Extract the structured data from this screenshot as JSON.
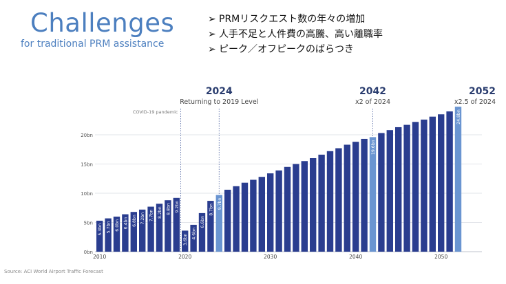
{
  "slide": {
    "title": "Challenges",
    "subtitle": "for traditional PRM assistance",
    "bullets": [
      {
        "marker": "➢",
        "text": "PRMリスクエスト数の年々の増加"
      },
      {
        "marker": "➢",
        "text": "人手不足と人件費の高騰、高い離職率"
      },
      {
        "marker": "➢",
        "text": "ピーク／オフピークのばらつき"
      }
    ],
    "source": "Source: ACI World Airport Traffic Forecast"
  },
  "colors": {
    "title": "#4c7fbf",
    "bar": "#2a3d8f",
    "highlight_bar": "#6a95d1",
    "milestone_text": "#2a3d6f"
  },
  "chart_data": {
    "type": "bar",
    "ylim": [
      0,
      25
    ],
    "yticks": [
      0,
      5,
      10,
      15,
      20
    ],
    "ytick_labels": [
      "0bn",
      "5bn",
      "10bn",
      "15bn",
      "20bn"
    ],
    "xticks": [
      2010,
      2020,
      2030,
      2040,
      2050
    ],
    "grid": true,
    "x": [
      2010,
      2011,
      2012,
      2013,
      2014,
      2015,
      2016,
      2017,
      2018,
      2019,
      2020,
      2021,
      2022,
      2023,
      2024,
      2025,
      2026,
      2027,
      2028,
      2029,
      2030,
      2031,
      2032,
      2033,
      2034,
      2035,
      2036,
      2037,
      2038,
      2039,
      2040,
      2041,
      2042,
      2043,
      2044,
      2045,
      2046,
      2047,
      2048,
      2049,
      2050,
      2051,
      2052
    ],
    "values": [
      5.3,
      5.7,
      6.0,
      6.4,
      6.8,
      7.2,
      7.7,
      8.2,
      8.8,
      9.2,
      3.6,
      4.6,
      6.6,
      8.7,
      9.7,
      10.6,
      11.2,
      11.8,
      12.3,
      12.8,
      13.4,
      13.9,
      14.5,
      15.0,
      15.5,
      16.0,
      16.6,
      17.2,
      17.7,
      18.3,
      18.8,
      19.3,
      19.6,
      20.3,
      20.8,
      21.3,
      21.7,
      22.2,
      22.6,
      23.1,
      23.5,
      24.0,
      24.8
    ],
    "data_labels": [
      "5.3bn",
      "5.7bn",
      "6.0bn",
      "6.4bn",
      "6.8bn",
      "7.2bn",
      "7.7bn",
      "8.2bn",
      "8.8bn",
      "9.2bn",
      "3.6bn",
      "4.6bn",
      "6.6bn",
      "8.7bn",
      "9.7bn",
      "",
      "",
      "",
      "",
      "",
      "",
      "",
      "",
      "",
      "",
      "",
      "",
      "",
      "",
      "",
      "",
      "",
      "19.6bn",
      "",
      "",
      "",
      "",
      "",
      "",
      "",
      "",
      "",
      "24.8bn"
    ],
    "highlight_years": [
      2024,
      2042,
      2052
    ],
    "annotations": [
      {
        "year": 2019.5,
        "label": "COVID-19 pandemic",
        "sublabel": ""
      },
      {
        "year": 2024,
        "label": "2024",
        "sublabel": "Returning to 2019 Level"
      },
      {
        "year": 2042,
        "label": "2042",
        "sublabel": "x2 of 2024"
      },
      {
        "year": 2052,
        "label": "2052",
        "sublabel": "x2.5 of 2024"
      }
    ]
  }
}
